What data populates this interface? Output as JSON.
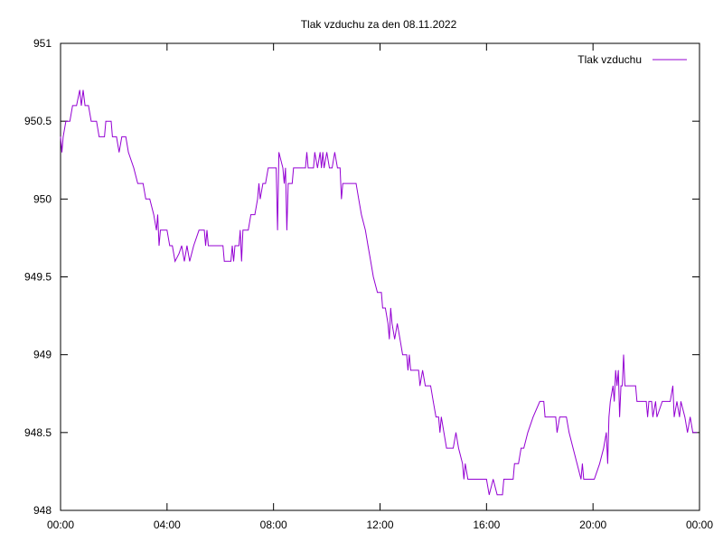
{
  "chart_data": {
    "type": "line",
    "title": "Tlak vzduchu za den 08.11.2022",
    "xlabel": "",
    "ylabel": "",
    "x_unit": "hours",
    "xlim": [
      0,
      24
    ],
    "ylim": [
      948,
      951
    ],
    "x_ticks": [
      {
        "value": 0,
        "label": "00:00"
      },
      {
        "value": 4,
        "label": "04:00"
      },
      {
        "value": 8,
        "label": "08:00"
      },
      {
        "value": 12,
        "label": "12:00"
      },
      {
        "value": 16,
        "label": "16:00"
      },
      {
        "value": 20,
        "label": "20:00"
      },
      {
        "value": 24,
        "label": "00:00"
      }
    ],
    "y_ticks": [
      {
        "value": 948,
        "label": "948"
      },
      {
        "value": 948.5,
        "label": "948.5"
      },
      {
        "value": 949,
        "label": "949"
      },
      {
        "value": 949.5,
        "label": "949.5"
      },
      {
        "value": 950,
        "label": "950"
      },
      {
        "value": 950.5,
        "label": "950.5"
      },
      {
        "value": 951,
        "label": "951"
      }
    ],
    "grid": false,
    "legend_position": "top-right",
    "series": [
      {
        "name": "Tlak vzduchu",
        "color": "#9400d3",
        "points": [
          [
            0.0,
            950.4
          ],
          [
            0.05,
            950.3
          ],
          [
            0.1,
            950.4
          ],
          [
            0.2,
            950.5
          ],
          [
            0.35,
            950.5
          ],
          [
            0.45,
            950.6
          ],
          [
            0.6,
            950.6
          ],
          [
            0.72,
            950.7
          ],
          [
            0.78,
            950.6
          ],
          [
            0.85,
            950.7
          ],
          [
            0.92,
            950.6
          ],
          [
            1.05,
            950.6
          ],
          [
            1.15,
            950.5
          ],
          [
            1.35,
            950.5
          ],
          [
            1.45,
            950.4
          ],
          [
            1.65,
            950.4
          ],
          [
            1.7,
            950.5
          ],
          [
            1.9,
            950.5
          ],
          [
            1.95,
            950.4
          ],
          [
            2.1,
            950.4
          ],
          [
            2.2,
            950.3
          ],
          [
            2.3,
            950.4
          ],
          [
            2.45,
            950.4
          ],
          [
            2.55,
            950.3
          ],
          [
            2.75,
            950.2
          ],
          [
            2.9,
            950.1
          ],
          [
            3.1,
            950.1
          ],
          [
            3.2,
            950.0
          ],
          [
            3.35,
            950.0
          ],
          [
            3.5,
            949.9
          ],
          [
            3.6,
            949.8
          ],
          [
            3.65,
            949.9
          ],
          [
            3.7,
            949.7
          ],
          [
            3.75,
            949.8
          ],
          [
            4.0,
            949.8
          ],
          [
            4.1,
            949.7
          ],
          [
            4.2,
            949.7
          ],
          [
            4.3,
            949.6
          ],
          [
            4.45,
            949.65
          ],
          [
            4.55,
            949.7
          ],
          [
            4.65,
            949.6
          ],
          [
            4.75,
            949.7
          ],
          [
            4.85,
            949.6
          ],
          [
            5.0,
            949.7
          ],
          [
            5.2,
            949.8
          ],
          [
            5.4,
            949.8
          ],
          [
            5.45,
            949.7
          ],
          [
            5.5,
            949.8
          ],
          [
            5.55,
            949.7
          ],
          [
            6.1,
            949.7
          ],
          [
            6.15,
            949.6
          ],
          [
            6.4,
            949.6
          ],
          [
            6.45,
            949.7
          ],
          [
            6.5,
            949.6
          ],
          [
            6.55,
            949.7
          ],
          [
            6.7,
            949.7
          ],
          [
            6.75,
            949.8
          ],
          [
            6.8,
            949.6
          ],
          [
            6.85,
            949.8
          ],
          [
            7.05,
            949.8
          ],
          [
            7.15,
            949.9
          ],
          [
            7.3,
            949.9
          ],
          [
            7.4,
            950.0
          ],
          [
            7.45,
            950.1
          ],
          [
            7.5,
            950.0
          ],
          [
            7.6,
            950.1
          ],
          [
            7.7,
            950.1
          ],
          [
            7.8,
            950.2
          ],
          [
            8.1,
            950.2
          ],
          [
            8.15,
            949.8
          ],
          [
            8.2,
            950.3
          ],
          [
            8.35,
            950.2
          ],
          [
            8.4,
            950.1
          ],
          [
            8.45,
            950.2
          ],
          [
            8.5,
            949.8
          ],
          [
            8.55,
            950.1
          ],
          [
            8.7,
            950.1
          ],
          [
            8.75,
            950.2
          ],
          [
            9.2,
            950.2
          ],
          [
            9.25,
            950.3
          ],
          [
            9.3,
            950.2
          ],
          [
            9.5,
            950.2
          ],
          [
            9.55,
            950.3
          ],
          [
            9.65,
            950.2
          ],
          [
            9.75,
            950.3
          ],
          [
            9.8,
            950.2
          ],
          [
            9.85,
            950.3
          ],
          [
            9.9,
            950.2
          ],
          [
            10.0,
            950.3
          ],
          [
            10.1,
            950.2
          ],
          [
            10.2,
            950.2
          ],
          [
            10.3,
            950.3
          ],
          [
            10.4,
            950.2
          ],
          [
            10.5,
            950.2
          ],
          [
            10.55,
            950.0
          ],
          [
            10.6,
            950.1
          ],
          [
            11.1,
            950.1
          ],
          [
            11.2,
            950.0
          ],
          [
            11.3,
            949.9
          ],
          [
            11.45,
            949.8
          ],
          [
            11.55,
            949.7
          ],
          [
            11.65,
            949.6
          ],
          [
            11.75,
            949.5
          ],
          [
            11.9,
            949.4
          ],
          [
            12.05,
            949.4
          ],
          [
            12.1,
            949.3
          ],
          [
            12.2,
            949.3
          ],
          [
            12.3,
            949.2
          ],
          [
            12.35,
            949.1
          ],
          [
            12.4,
            949.3
          ],
          [
            12.45,
            949.2
          ],
          [
            12.55,
            949.1
          ],
          [
            12.65,
            949.2
          ],
          [
            12.75,
            949.1
          ],
          [
            12.85,
            949.0
          ],
          [
            13.0,
            949.0
          ],
          [
            13.05,
            948.9
          ],
          [
            13.1,
            949.0
          ],
          [
            13.15,
            948.9
          ],
          [
            13.45,
            948.9
          ],
          [
            13.5,
            948.8
          ],
          [
            13.6,
            948.9
          ],
          [
            13.7,
            948.8
          ],
          [
            13.9,
            948.8
          ],
          [
            14.0,
            948.7
          ],
          [
            14.1,
            948.6
          ],
          [
            14.2,
            948.6
          ],
          [
            14.25,
            948.5
          ],
          [
            14.3,
            948.6
          ],
          [
            14.4,
            948.5
          ],
          [
            14.5,
            948.4
          ],
          [
            14.75,
            948.4
          ],
          [
            14.85,
            948.5
          ],
          [
            14.95,
            948.4
          ],
          [
            15.1,
            948.3
          ],
          [
            15.15,
            948.2
          ],
          [
            15.2,
            948.3
          ],
          [
            15.3,
            948.2
          ],
          [
            16.0,
            948.2
          ],
          [
            16.1,
            948.1
          ],
          [
            16.25,
            948.2
          ],
          [
            16.4,
            948.1
          ],
          [
            16.6,
            948.1
          ],
          [
            16.65,
            948.2
          ],
          [
            17.0,
            948.2
          ],
          [
            17.05,
            948.3
          ],
          [
            17.2,
            948.3
          ],
          [
            17.3,
            948.4
          ],
          [
            17.4,
            948.4
          ],
          [
            17.55,
            948.5
          ],
          [
            17.75,
            948.6
          ],
          [
            18.0,
            948.7
          ],
          [
            18.15,
            948.7
          ],
          [
            18.2,
            948.6
          ],
          [
            18.6,
            948.6
          ],
          [
            18.65,
            948.5
          ],
          [
            18.75,
            948.6
          ],
          [
            19.0,
            948.6
          ],
          [
            19.1,
            948.5
          ],
          [
            19.25,
            948.4
          ],
          [
            19.4,
            948.3
          ],
          [
            19.55,
            948.2
          ],
          [
            19.6,
            948.3
          ],
          [
            19.65,
            948.2
          ],
          [
            20.05,
            948.2
          ],
          [
            20.25,
            948.3
          ],
          [
            20.4,
            948.4
          ],
          [
            20.5,
            948.5
          ],
          [
            20.55,
            948.3
          ],
          [
            20.6,
            948.6
          ],
          [
            20.65,
            948.7
          ],
          [
            20.75,
            948.8
          ],
          [
            20.8,
            948.7
          ],
          [
            20.85,
            948.9
          ],
          [
            20.9,
            948.8
          ],
          [
            20.95,
            948.9
          ],
          [
            21.0,
            948.6
          ],
          [
            21.05,
            948.8
          ],
          [
            21.1,
            948.8
          ],
          [
            21.15,
            949.0
          ],
          [
            21.2,
            948.8
          ],
          [
            21.6,
            948.8
          ],
          [
            21.65,
            948.7
          ],
          [
            21.85,
            948.7
          ],
          [
            22.0,
            948.7
          ],
          [
            22.05,
            948.6
          ],
          [
            22.1,
            948.7
          ],
          [
            22.2,
            948.7
          ],
          [
            22.25,
            948.6
          ],
          [
            22.35,
            948.7
          ],
          [
            22.4,
            948.6
          ],
          [
            22.6,
            948.7
          ],
          [
            22.9,
            948.7
          ],
          [
            23.0,
            948.8
          ],
          [
            23.05,
            948.6
          ],
          [
            23.15,
            948.7
          ],
          [
            23.25,
            948.6
          ],
          [
            23.3,
            948.7
          ],
          [
            23.45,
            948.6
          ],
          [
            23.55,
            948.5
          ],
          [
            23.65,
            948.6
          ],
          [
            23.75,
            948.5
          ],
          [
            23.9,
            948.5
          ]
        ]
      }
    ]
  }
}
